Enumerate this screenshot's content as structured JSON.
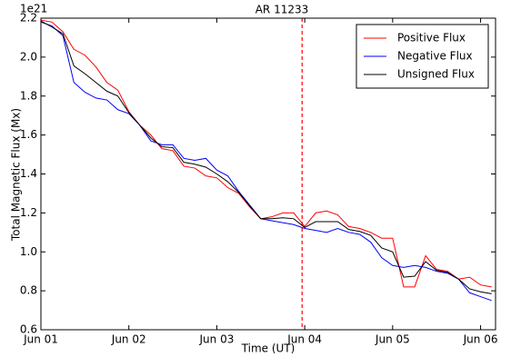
{
  "chart_data": {
    "type": "line",
    "title": "AR 11233",
    "xlabel": "Time (UT)",
    "ylabel": "Total Magnetic Flux (Mx)",
    "y_offset_label": "1e21",
    "x": [
      0,
      0.125,
      0.25,
      0.375,
      0.5,
      0.625,
      0.75,
      0.875,
      1.0,
      1.125,
      1.25,
      1.375,
      1.5,
      1.625,
      1.75,
      1.875,
      2.0,
      2.125,
      2.25,
      2.375,
      2.5,
      2.625,
      2.75,
      2.875,
      3.0,
      3.125,
      3.25,
      3.375,
      3.5,
      3.625,
      3.75,
      3.875,
      4.0,
      4.125,
      4.25,
      4.375,
      4.5,
      4.625,
      4.75,
      4.875,
      5.0,
      5.125
    ],
    "series": [
      {
        "name": "Positive Flux",
        "color": "#ff0000",
        "values": [
          2.19,
          2.18,
          2.13,
          2.04,
          2.01,
          1.95,
          1.87,
          1.83,
          1.72,
          1.65,
          1.6,
          1.53,
          1.52,
          1.44,
          1.43,
          1.39,
          1.38,
          1.33,
          1.3,
          1.23,
          1.17,
          1.18,
          1.2,
          1.2,
          1.13,
          1.2,
          1.21,
          1.19,
          1.13,
          1.12,
          1.1,
          1.07,
          1.07,
          0.82,
          0.82,
          0.98,
          0.91,
          0.9,
          0.86,
          0.87,
          0.83,
          0.82
        ]
      },
      {
        "name": "Negative Flux",
        "color": "#0000ff",
        "values": [
          2.18,
          2.16,
          2.11,
          1.87,
          1.82,
          1.79,
          1.78,
          1.73,
          1.71,
          1.65,
          1.57,
          1.55,
          1.55,
          1.48,
          1.47,
          1.48,
          1.42,
          1.39,
          1.31,
          1.24,
          1.17,
          1.16,
          1.15,
          1.14,
          1.12,
          1.11,
          1.1,
          1.12,
          1.1,
          1.09,
          1.05,
          0.97,
          0.93,
          0.92,
          0.93,
          0.92,
          0.9,
          0.89,
          0.86,
          0.79,
          0.77,
          0.75
        ]
      },
      {
        "name": "Unsigned Flux",
        "color": "#000000",
        "values": [
          2.185,
          2.155,
          2.12,
          1.955,
          1.915,
          1.87,
          1.825,
          1.8,
          1.715,
          1.65,
          1.585,
          1.54,
          1.535,
          1.46,
          1.45,
          1.435,
          1.4,
          1.36,
          1.305,
          1.235,
          1.17,
          1.17,
          1.175,
          1.17,
          1.125,
          1.155,
          1.155,
          1.155,
          1.115,
          1.105,
          1.085,
          1.02,
          1.0,
          0.87,
          0.875,
          0.95,
          0.905,
          0.895,
          0.86,
          0.81,
          0.795,
          0.785
        ]
      }
    ],
    "xlim": [
      0,
      5.17
    ],
    "ylim": [
      0.6,
      2.2
    ],
    "xticks": [
      {
        "value": 0,
        "label": "Jun 01"
      },
      {
        "value": 1,
        "label": "Jun 02"
      },
      {
        "value": 2,
        "label": "Jun 03"
      },
      {
        "value": 3,
        "label": "Jun 04"
      },
      {
        "value": 4,
        "label": "Jun 05"
      },
      {
        "value": 5,
        "label": "Jun 06"
      }
    ],
    "yticks": [
      0.6,
      0.8,
      {
        "value": 1.0,
        "label": "1.0"
      },
      1.2,
      1.4,
      1.6,
      1.8,
      {
        "value": 2.0,
        "label": "2.0"
      },
      2.2
    ],
    "vline": {
      "x": 2.97,
      "color": "#ff0000"
    },
    "legend": "upper right",
    "grid": false
  }
}
